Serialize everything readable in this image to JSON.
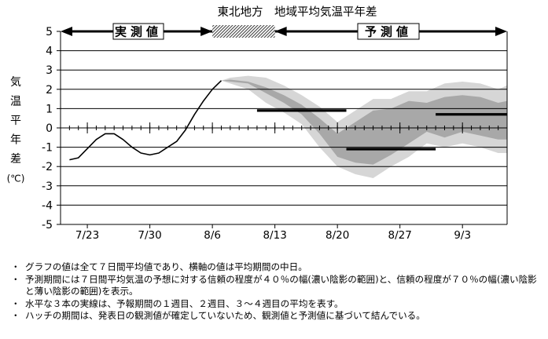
{
  "chart_data": {
    "type": "line",
    "title": "東北地方　地域平均気温平年差",
    "ylabel": "気温平年差(℃)",
    "ylabel_chars": [
      "気",
      "温",
      "平",
      "年",
      "差",
      "(℃)"
    ],
    "ylim": [
      -5,
      5
    ],
    "yticks": [
      "5",
      "4",
      "3",
      "2",
      "1",
      "0",
      "-1",
      "-2",
      "-3",
      "-4",
      "-5"
    ],
    "xlim": [
      "7/20",
      "9/8"
    ],
    "xticks": [
      "7/23",
      "7/30",
      "8/6",
      "8/13",
      "8/20",
      "8/27",
      "9/3"
    ],
    "periods": {
      "observed_label": "実測値",
      "forecast_label": "予測値",
      "hatch_start": "8/6",
      "hatch_end": "8/13"
    },
    "observed": {
      "x": [
        "7/21",
        "7/22",
        "7/24",
        "7/25",
        "7/26",
        "7/27",
        "7/28",
        "7/29",
        "7/30",
        "7/31",
        "8/1",
        "8/2",
        "8/3",
        "8/4",
        "8/5",
        "8/6",
        "8/7"
      ],
      "y": [
        -1.65,
        -1.55,
        -0.6,
        -0.3,
        -0.3,
        -0.6,
        -1.0,
        -1.3,
        -1.4,
        -1.3,
        -1.0,
        -0.7,
        -0.1,
        0.7,
        1.4,
        2.0,
        2.45
      ]
    },
    "outer_band": {
      "x": [
        "8/7",
        "8/8",
        "8/10",
        "8/12",
        "8/14",
        "8/16",
        "8/18",
        "8/20",
        "8/22",
        "8/24",
        "8/26",
        "8/28",
        "8/30",
        "9/1",
        "9/3",
        "9/5",
        "9/7",
        "9/8"
      ],
      "upper": [
        2.45,
        2.6,
        2.7,
        2.6,
        2.2,
        1.7,
        1.1,
        0.3,
        0.9,
        1.5,
        1.5,
        1.9,
        1.9,
        2.3,
        2.4,
        2.3,
        2.0,
        2.2
      ],
      "lower": [
        2.45,
        2.3,
        2.0,
        1.3,
        0.8,
        0.2,
        -1.0,
        -2.0,
        -2.4,
        -2.6,
        -2.0,
        -1.5,
        -0.8,
        -1.0,
        -0.8,
        -1.0,
        -1.3,
        -1.3
      ]
    },
    "inner_band": {
      "x": [
        "8/7",
        "8/8",
        "8/10",
        "8/12",
        "8/14",
        "8/16",
        "8/18",
        "8/20",
        "8/22",
        "8/24",
        "8/26",
        "8/28",
        "8/30",
        "9/1",
        "9/3",
        "9/5",
        "9/7",
        "9/8"
      ],
      "upper": [
        2.45,
        2.5,
        2.4,
        2.1,
        1.7,
        1.2,
        0.5,
        -0.3,
        0.3,
        0.9,
        1.0,
        1.4,
        1.3,
        1.6,
        1.7,
        1.6,
        1.3,
        1.4
      ],
      "lower": [
        2.45,
        2.4,
        2.3,
        1.8,
        1.3,
        0.7,
        -0.3,
        -1.5,
        -1.8,
        -1.9,
        -1.4,
        -0.8,
        -0.2,
        -0.5,
        -0.2,
        -0.4,
        -0.6,
        -0.6
      ]
    },
    "weekly_means": [
      {
        "x": [
          "8/11",
          "8/21"
        ],
        "y": 0.9
      },
      {
        "x": [
          "8/21",
          "8/31"
        ],
        "y": -1.1
      },
      {
        "x": [
          "8/31",
          "9/8"
        ],
        "y": 0.7
      }
    ],
    "colors": {
      "outer_band": "#d6d6d6",
      "inner_band": "#a8a8a8",
      "line": "#000000",
      "grid": "#000000",
      "hatch": "#555555"
    }
  },
  "notes": [
    {
      "bullet": "・",
      "text": "グラフの値は全て７日間平均値であり、横軸の値は平均期間の中日。"
    },
    {
      "bullet": "・",
      "text": "予測期間には７日間平均気温の予想に対する信頼の程度が４０％の幅(濃い陰影の範囲)と、信頼の程度が７０％の幅(濃い陰影と薄い陰影の範囲)を表示。"
    },
    {
      "bullet": "・",
      "text": "水平な３本の実線は、予報期間の１週目、２週目、３～４週目の平均を表す。"
    },
    {
      "bullet": "・",
      "text": "ハッチの期間は、発表日の観測値が確定していないため、観測値と予測値に基づいて結んでいる。"
    }
  ]
}
